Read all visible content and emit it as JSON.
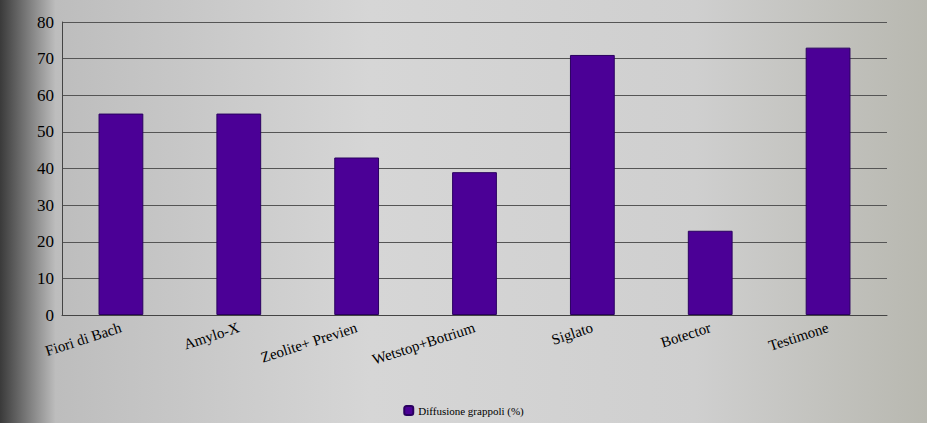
{
  "chart_data": {
    "type": "bar",
    "categories": [
      "Fiori di Bach",
      "Amylo-X",
      "Zeolite+ Previen",
      "Wetstop+Botrium",
      "Siglato",
      "Botector",
      "Testimone"
    ],
    "series": [
      {
        "name": "Diffusione grappoli (%)",
        "color": "#4b0096",
        "values": [
          55,
          55,
          43,
          39,
          71,
          23,
          73
        ]
      }
    ],
    "ylim": [
      0,
      80
    ],
    "yticks": [
      0,
      10,
      20,
      30,
      40,
      50,
      60,
      70,
      80
    ],
    "grid": true,
    "legend": "bottom"
  }
}
